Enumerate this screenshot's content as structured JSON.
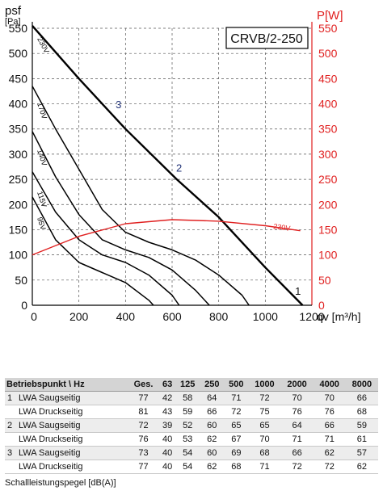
{
  "chart_data": {
    "type": "line",
    "title": "CRVB/2-250",
    "xlabel": "qv [m³/h]",
    "ylabel_left": "psf [Pa]",
    "ylabel_right": "P[W]",
    "xlim": [
      0,
      1200
    ],
    "ylim": [
      0,
      550
    ],
    "y2lim": [
      0,
      550
    ],
    "x_ticks": [
      "0",
      "200",
      "400",
      "600",
      "800",
      "1000",
      "1200"
    ],
    "y_ticks": [
      "0",
      "50",
      "100",
      "150",
      "200",
      "250",
      "300",
      "350",
      "400",
      "450",
      "500",
      "550"
    ],
    "y2_ticks": [
      "0",
      "50",
      "100",
      "150",
      "200",
      "250",
      "300",
      "350",
      "400",
      "450",
      "500",
      "550"
    ],
    "grid": true,
    "series": [
      {
        "name": "230V",
        "axis": "left",
        "x": [
          0,
          200,
          400,
          620,
          800,
          1000,
          1160
        ],
        "y": [
          555,
          450,
          350,
          250,
          175,
          75,
          0
        ]
      },
      {
        "name": "170V",
        "axis": "left",
        "x": [
          0,
          100,
          200,
          300,
          400,
          500,
          600,
          700,
          800,
          900,
          930
        ],
        "y": [
          435,
          350,
          270,
          190,
          145,
          125,
          110,
          90,
          60,
          20,
          0
        ]
      },
      {
        "name": "140V",
        "axis": "left",
        "x": [
          0,
          100,
          200,
          300,
          400,
          500,
          600,
          700,
          760
        ],
        "y": [
          345,
          255,
          180,
          130,
          110,
          95,
          70,
          30,
          0
        ]
      },
      {
        "name": "115V",
        "axis": "left",
        "x": [
          0,
          100,
          200,
          300,
          400,
          500,
          600,
          630
        ],
        "y": [
          265,
          185,
          130,
          100,
          85,
          60,
          20,
          0
        ]
      },
      {
        "name": "95V",
        "axis": "left",
        "x": [
          0,
          100,
          200,
          300,
          400,
          500,
          520
        ],
        "y": [
          215,
          130,
          85,
          65,
          45,
          10,
          0
        ]
      },
      {
        "name": "230V",
        "axis": "right",
        "color": "#e02020",
        "x": [
          0,
          200,
          400,
          600,
          800,
          1000,
          1150
        ],
        "y": [
          100,
          137,
          162,
          170,
          167,
          158,
          148
        ]
      }
    ],
    "labels_on_curves": [
      "230V",
      "170V",
      "140V",
      "115V",
      "95V",
      "230V"
    ],
    "operating_points": [
      {
        "label": "1",
        "x": 1140,
        "y": 18
      },
      {
        "label": "2",
        "x": 630,
        "y": 262
      },
      {
        "label": "3",
        "x": 370,
        "y": 388
      }
    ]
  },
  "table": {
    "header": [
      "Betriebspunkt \\ Hz",
      "Ges.",
      "63",
      "125",
      "250",
      "500",
      "1000",
      "2000",
      "4000",
      "8000"
    ],
    "rows": [
      {
        "point": "1",
        "label": "LWA Saugseitig",
        "values": [
          "77",
          "42",
          "58",
          "64",
          "71",
          "72",
          "70",
          "70",
          "66"
        ]
      },
      {
        "point": "",
        "label": "LWA Druckseitig",
        "values": [
          "81",
          "43",
          "59",
          "66",
          "72",
          "75",
          "76",
          "76",
          "68"
        ]
      },
      {
        "point": "2",
        "label": "LWA Saugseitig",
        "values": [
          "72",
          "39",
          "52",
          "60",
          "65",
          "65",
          "64",
          "66",
          "59"
        ]
      },
      {
        "point": "",
        "label": "LWA Druckseitig",
        "values": [
          "76",
          "40",
          "53",
          "62",
          "67",
          "70",
          "71",
          "71",
          "61"
        ]
      },
      {
        "point": "3",
        "label": "LWA Saugseitig",
        "values": [
          "73",
          "40",
          "54",
          "60",
          "69",
          "68",
          "66",
          "62",
          "57"
        ]
      },
      {
        "point": "",
        "label": "LWA Druckseitig",
        "values": [
          "77",
          "40",
          "54",
          "62",
          "68",
          "71",
          "72",
          "72",
          "62"
        ]
      }
    ],
    "footnote": "Schallleistungspegel [dB(A)]"
  }
}
